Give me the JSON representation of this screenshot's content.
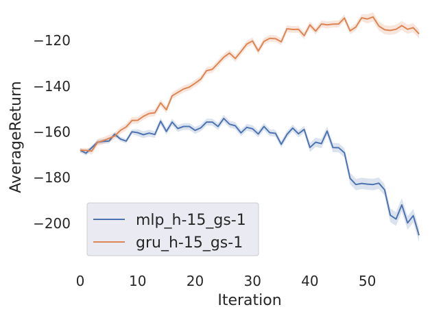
{
  "chart_data": {
    "type": "line",
    "xlabel": "Iteration",
    "ylabel": "AverageReturn",
    "xlim": [
      0,
      59
    ],
    "ylim": [
      -215,
      -108
    ],
    "xticks": [
      0,
      10,
      20,
      30,
      40,
      50
    ],
    "yticks": [
      -200,
      -180,
      -160,
      -140,
      -120
    ],
    "xtick_labels": [
      "0",
      "10",
      "20",
      "30",
      "40",
      "50"
    ],
    "ytick_labels": [
      "−200",
      "−180",
      "−160",
      "−140",
      "−120"
    ],
    "grid": false,
    "legend": "lower-left",
    "series": [
      {
        "name": "mlp_h-15_gs-1",
        "color": "#4c72b0",
        "values": [
          -168.0,
          -169.3,
          -166.9,
          -164.5,
          -164.1,
          -164.0,
          -161.0,
          -163.1,
          -164.0,
          -159.9,
          -160.3,
          -161.2,
          -160.5,
          -161.1,
          -155.3,
          -159.8,
          -155.7,
          -158.5,
          -157.6,
          -157.6,
          -159.3,
          -158.2,
          -155.7,
          -155.7,
          -157.6,
          -154.1,
          -156.6,
          -157.3,
          -160.4,
          -158.0,
          -158.6,
          -160.9,
          -157.6,
          -160.3,
          -160.6,
          -165.4,
          -161.1,
          -158.3,
          -160.8,
          -158.9,
          -166.8,
          -164.5,
          -165.1,
          -159.6,
          -166.8,
          -166.9,
          -169.1,
          -180.3,
          -183.0,
          -182.5,
          -182.8,
          -183.0,
          -182.4,
          -185.3,
          -196.4,
          -198.1,
          -191.9,
          -199.8,
          -196.6,
          -205.2
        ],
        "band": [
          1.0,
          1.0,
          1.0,
          1.0,
          1.0,
          1.0,
          1.0,
          1.0,
          1.0,
          1.0,
          1.5,
          1.5,
          1.5,
          1.5,
          1.5,
          1.5,
          1.5,
          1.5,
          1.5,
          1.5,
          1.5,
          1.5,
          1.5,
          1.5,
          1.5,
          1.5,
          1.5,
          1.5,
          1.5,
          1.5,
          1.5,
          1.5,
          1.5,
          1.5,
          1.5,
          1.5,
          1.5,
          1.5,
          1.5,
          1.5,
          2.0,
          2.0,
          2.0,
          2.0,
          2.0,
          2.0,
          2.0,
          2.5,
          2.5,
          2.5,
          2.5,
          2.5,
          2.5,
          2.5,
          3.0,
          3.0,
          3.0,
          3.0,
          3.0,
          3.0
        ]
      },
      {
        "name": "gru_h-15_gs-1",
        "color": "#dd8452",
        "values": [
          -168.0,
          -168.0,
          -168.4,
          -164.6,
          -163.8,
          -162.8,
          -161.8,
          -159.3,
          -157.8,
          -155.0,
          -154.9,
          -153.2,
          -151.9,
          -151.6,
          -147.3,
          -150.3,
          -144.2,
          -142.7,
          -141.2,
          -140.4,
          -138.7,
          -136.9,
          -133.2,
          -132.6,
          -130.0,
          -127.3,
          -125.5,
          -127.9,
          -124.8,
          -121.6,
          -120.2,
          -124.6,
          -120.4,
          -119.1,
          -119.2,
          -120.6,
          -114.9,
          -115.2,
          -115.1,
          -117.9,
          -113.2,
          -115.9,
          -112.8,
          -113.2,
          -112.9,
          -112.8,
          -110.2,
          -115.8,
          -114.1,
          -110.1,
          -110.6,
          -109.7,
          -113.7,
          -115.3,
          -115.6,
          -115.1,
          -113.5,
          -115.1,
          -114.4,
          -117.1
        ],
        "band": [
          1.0,
          1.0,
          1.5,
          1.5,
          1.5,
          1.5,
          1.5,
          1.5,
          1.5,
          1.5,
          1.5,
          1.5,
          1.5,
          1.5,
          1.5,
          1.5,
          1.5,
          1.5,
          1.5,
          1.5,
          1.5,
          1.5,
          1.5,
          1.5,
          1.5,
          1.5,
          1.5,
          1.5,
          1.5,
          1.5,
          1.5,
          1.5,
          1.5,
          1.5,
          1.5,
          1.5,
          1.5,
          1.5,
          1.5,
          1.5,
          1.5,
          1.5,
          1.5,
          1.5,
          1.5,
          1.5,
          1.5,
          1.5,
          1.5,
          1.5,
          2.0,
          2.0,
          2.0,
          2.0,
          2.0,
          2.0,
          2.0,
          2.0,
          2.0,
          2.0
        ]
      }
    ]
  }
}
